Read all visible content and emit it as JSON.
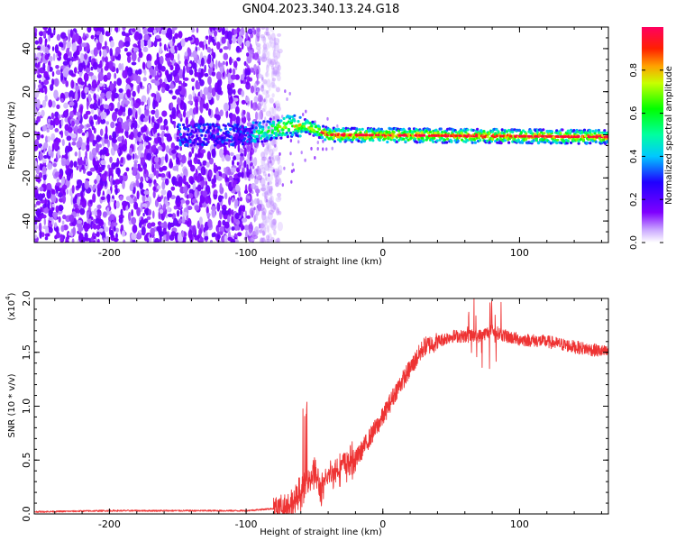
{
  "title": "GN04.2023.340.13.24.G18",
  "chart_data": [
    {
      "type": "heatmap",
      "title": "GN04.2023.340.13.24.G18",
      "xlabel": "Height of straight line (km)",
      "ylabel": "Frequency (Hz)",
      "xlim": [
        -255,
        165
      ],
      "ylim": [
        -50,
        50
      ],
      "xticks": [
        -200,
        -100,
        0,
        100
      ],
      "yticks": [
        -40,
        -20,
        0,
        20,
        40
      ],
      "xtick_labels": [
        "-200",
        "-100",
        "0",
        "100"
      ],
      "ytick_labels": [
        "-40",
        "-20",
        "0",
        "20",
        "40"
      ],
      "colorbar": {
        "label": "Normalized spectral amplitude",
        "range": [
          0,
          1
        ],
        "ticks": [
          0,
          0.2,
          0.4,
          0.6,
          0.8
        ],
        "tick_labels": [
          "0.0",
          "0.2",
          "0.4",
          "0.6",
          "0.8"
        ],
        "colormap": "rainbow (purple to red)"
      },
      "features": {
        "noise_region_x": [
          -255,
          -85
        ],
        "signal_ridge_start_x": -150,
        "ridge_frequency_hz": [
          {
            "x": -150,
            "y": 0
          },
          {
            "x": -100,
            "y": 0
          },
          {
            "x": -70,
            "y": 4
          },
          {
            "x": -55,
            "y": 4
          },
          {
            "x": -40,
            "y": 0
          },
          {
            "x": 165,
            "y": -1
          }
        ]
      },
      "colors": {
        "low": "#8000ff",
        "mid_low": "#00ffff",
        "mid": "#00ff00",
        "mid_high": "#ffff00",
        "high": "#ff0000"
      }
    },
    {
      "type": "line",
      "xlabel": "Height of straight line (km)",
      "ylabel": "SNR (10 * v/v)",
      "multiplier_label": "(x10",
      "multiplier_exp": "4",
      "xlim": [
        -255,
        165
      ],
      "ylim": [
        0,
        2.0
      ],
      "xticks": [
        -200,
        -100,
        0,
        100
      ],
      "yticks": [
        0,
        0.5,
        1.0,
        1.5,
        2.0
      ],
      "xtick_labels": [
        "-200",
        "-100",
        "0",
        "100"
      ],
      "ytick_labels": [
        "0.0",
        "0.5",
        "1.0",
        "1.5",
        "2.0"
      ],
      "series": [
        {
          "color": "#ee3333",
          "x": [
            -255,
            -200,
            -150,
            -100,
            -80,
            -65,
            -55,
            -50,
            -45,
            -40,
            -30,
            -20,
            -10,
            0,
            10,
            20,
            30,
            40,
            50,
            60,
            70,
            80,
            90,
            100,
            120,
            140,
            165
          ],
          "y": [
            0.02,
            0.03,
            0.03,
            0.03,
            0.05,
            0.1,
            0.3,
            0.4,
            0.2,
            0.35,
            0.45,
            0.5,
            0.7,
            0.9,
            1.15,
            1.35,
            1.55,
            1.6,
            1.65,
            1.65,
            1.65,
            1.7,
            1.65,
            1.62,
            1.6,
            1.55,
            1.5
          ]
        }
      ]
    }
  ]
}
